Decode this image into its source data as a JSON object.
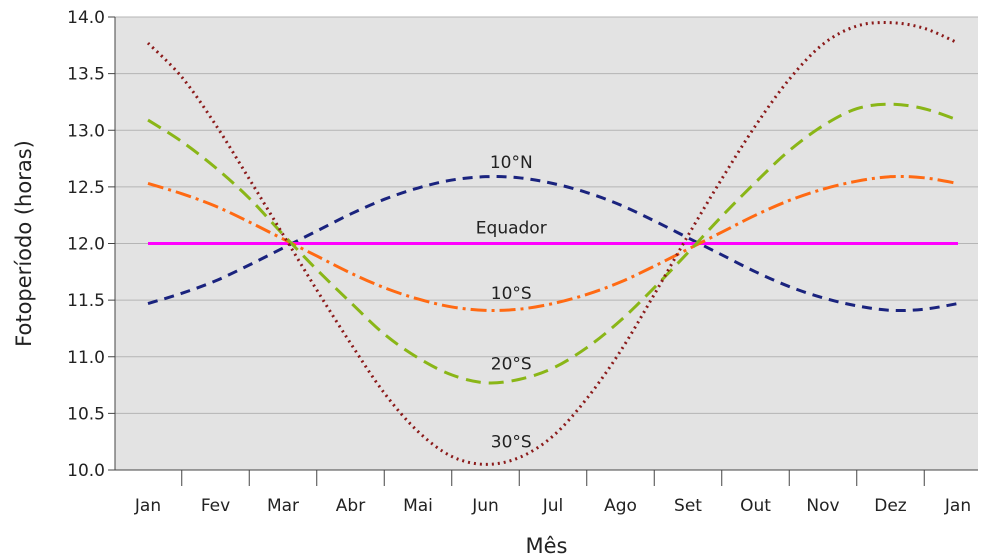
{
  "chart_data": {
    "type": "line",
    "xlabel": "Mês",
    "ylabel": "Fotoperíodo (horas)",
    "ylim": [
      10.0,
      14.0
    ],
    "xlim": [
      0,
      12
    ],
    "grid": true,
    "background": "#e3e3e3",
    "categories": [
      "Jan",
      "Fev",
      "Mar",
      "Abr",
      "Mai",
      "Jun",
      "Jul",
      "Ago",
      "Set",
      "Out",
      "Nov",
      "Dez",
      "Jan"
    ],
    "yticks": [
      "10.0",
      "10.5",
      "11.0",
      "11.5",
      "12.0",
      "12.5",
      "13.0",
      "13.5",
      "14.0"
    ],
    "x": [
      0,
      0.5,
      1,
      1.5,
      2,
      2.5,
      3,
      3.5,
      4,
      4.5,
      5,
      5.5,
      6,
      6.5,
      7,
      7.5,
      8,
      8.5,
      9,
      9.5,
      10,
      10.5,
      11,
      11.5,
      12
    ],
    "series": [
      {
        "name": "10°N",
        "color": "#1a237e",
        "dash": "10,7",
        "values": [
          11.47,
          11.56,
          11.67,
          11.81,
          11.96,
          12.11,
          12.26,
          12.39,
          12.49,
          12.56,
          12.59,
          12.58,
          12.53,
          12.45,
          12.34,
          12.2,
          12.05,
          11.9,
          11.75,
          11.62,
          11.52,
          11.45,
          11.41,
          11.42,
          11.47
        ]
      },
      {
        "name": "Equador",
        "color": "#ff00ff",
        "dash": "",
        "values": [
          12.0,
          12.0,
          12.0,
          12.0,
          12.0,
          12.0,
          12.0,
          12.0,
          12.0,
          12.0,
          12.0,
          12.0,
          12.0,
          12.0,
          12.0,
          12.0,
          12.0,
          12.0,
          12.0,
          12.0,
          12.0,
          12.0,
          12.0,
          12.0,
          12.0
        ]
      },
      {
        "name": "10°S",
        "color": "#ff6a13",
        "dash": "16,5,3,5",
        "values": [
          12.53,
          12.44,
          12.33,
          12.19,
          12.04,
          11.89,
          11.74,
          11.61,
          11.51,
          11.44,
          11.41,
          11.42,
          11.47,
          11.55,
          11.66,
          11.8,
          11.95,
          12.1,
          12.25,
          12.38,
          12.48,
          12.55,
          12.59,
          12.58,
          12.53
        ]
      },
      {
        "name": "20°S",
        "color": "#8ab617",
        "dash": "15,8",
        "values": [
          13.09,
          12.9,
          12.67,
          12.4,
          12.08,
          11.77,
          11.48,
          11.2,
          10.99,
          10.84,
          10.77,
          10.8,
          10.9,
          11.08,
          11.32,
          11.61,
          11.92,
          12.24,
          12.54,
          12.82,
          13.04,
          13.19,
          13.23,
          13.19,
          13.09
        ]
      },
      {
        "name": "30°S",
        "color": "#8b1a1a",
        "dash": "2,4",
        "values": [
          13.77,
          13.47,
          13.05,
          12.57,
          12.08,
          11.59,
          11.12,
          10.68,
          10.34,
          10.12,
          10.05,
          10.11,
          10.3,
          10.63,
          11.05,
          11.55,
          12.07,
          12.57,
          13.04,
          13.45,
          13.76,
          13.92,
          13.95,
          13.9,
          13.77
        ]
      }
    ]
  }
}
